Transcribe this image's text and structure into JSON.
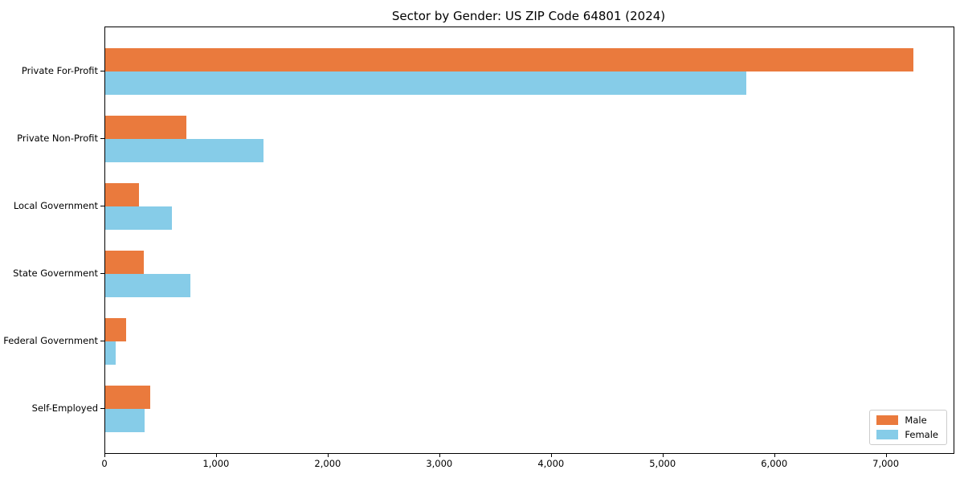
{
  "chart_data": {
    "type": "bar",
    "orientation": "horizontal",
    "title": "Sector by Gender: US ZIP Code 64801 (2024)",
    "categories": [
      "Private For-Profit",
      "Private Non-Profit",
      "Local Government",
      "State Government",
      "Federal Government",
      "Self-Employed"
    ],
    "series": [
      {
        "name": "Male",
        "color": "#EA7A3D",
        "values": [
          7240,
          730,
          300,
          345,
          190,
          405
        ]
      },
      {
        "name": "Female",
        "color": "#86CCE8",
        "values": [
          5740,
          1420,
          600,
          760,
          95,
          350
        ]
      }
    ],
    "xlabel": "",
    "ylabel": "",
    "xlim": [
      0,
      7600
    ],
    "xticks": [
      0,
      1000,
      2000,
      3000,
      4000,
      5000,
      6000,
      7000
    ],
    "xtick_labels": [
      "0",
      "1,000",
      "2,000",
      "3,000",
      "4,000",
      "5,000",
      "6,000",
      "7,000"
    ],
    "legend": {
      "position": "lower-right",
      "entries": [
        "Male",
        "Female"
      ]
    },
    "grid": false,
    "axis_color": "#000000",
    "legend_border_color": "#cccccc",
    "background_color": "#ffffff"
  }
}
